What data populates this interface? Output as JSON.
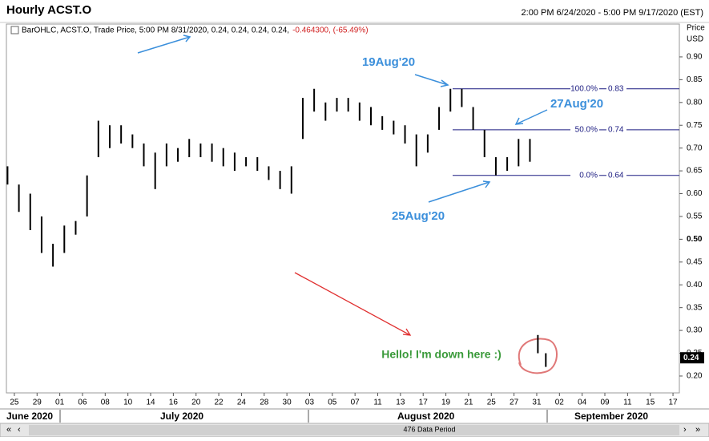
{
  "chart_data": {
    "type": "ohlc",
    "title": "Hourly ACST.O",
    "range_text": "2:00 PM 6/24/2020 - 5:00 PM 9/17/2020 (EST)",
    "legend_text": "BarOHLC, ACST.O, Trade Price, 5:00 PM 8/31/2020, 0.24, 0.24, 0.24, 0.24,",
    "legend_change": "-0.464300, (-65.49%)",
    "axis_label": "Price",
    "axis_unit": "USD",
    "last_price": 0.24,
    "footer_text": "476 Data Period",
    "color": "#000000",
    "ylim": [
      0.163,
      0.972
    ],
    "yticks": [
      {
        "value": 0.2,
        "label": "0.20"
      },
      {
        "value": 0.25,
        "label": "0.25"
      },
      {
        "value": 0.3,
        "label": "0.30"
      },
      {
        "value": 0.35,
        "label": "0.35"
      },
      {
        "value": 0.4,
        "label": "0.40"
      },
      {
        "value": 0.45,
        "label": "0.45"
      },
      {
        "value": 0.5,
        "label": "0.50"
      },
      {
        "value": 0.55,
        "label": "0.55"
      },
      {
        "value": 0.6,
        "label": "0.60"
      },
      {
        "value": 0.65,
        "label": "0.65"
      },
      {
        "value": 0.7,
        "label": "0.70"
      },
      {
        "value": 0.75,
        "label": "0.75"
      },
      {
        "value": 0.8,
        "label": "0.80"
      },
      {
        "value": 0.85,
        "label": "0.85"
      },
      {
        "value": 0.9,
        "label": "0.90"
      }
    ],
    "xlim": [
      -0.35,
      29.28
    ],
    "xticks": [
      {
        "value": 0,
        "label": "25"
      },
      {
        "value": 1,
        "label": "29"
      },
      {
        "value": 2,
        "label": "01"
      },
      {
        "value": 3,
        "label": "06"
      },
      {
        "value": 4,
        "label": "08"
      },
      {
        "value": 5,
        "label": "10"
      },
      {
        "value": 6,
        "label": "14"
      },
      {
        "value": 7,
        "label": "16"
      },
      {
        "value": 8,
        "label": "20"
      },
      {
        "value": 9,
        "label": "22"
      },
      {
        "value": 10,
        "label": "24"
      },
      {
        "value": 11,
        "label": "28"
      },
      {
        "value": 12,
        "label": "30"
      },
      {
        "value": 13,
        "label": "03"
      },
      {
        "value": 14,
        "label": "05"
      },
      {
        "value": 15,
        "label": "07"
      },
      {
        "value": 16,
        "label": "11"
      },
      {
        "value": 17,
        "label": "13"
      },
      {
        "value": 18,
        "label": "17"
      },
      {
        "value": 19,
        "label": "19"
      },
      {
        "value": 20,
        "label": "21"
      },
      {
        "value": 21,
        "label": "25"
      },
      {
        "value": 22,
        "label": "27"
      },
      {
        "value": 23,
        "label": "31"
      },
      {
        "value": 24,
        "label": "02"
      },
      {
        "value": 25,
        "label": "04"
      },
      {
        "value": 26,
        "label": "09"
      },
      {
        "value": 27,
        "label": "11"
      },
      {
        "value": 28,
        "label": "15"
      },
      {
        "value": 29,
        "label": "17"
      }
    ],
    "months": [
      "June 2020",
      "July 2020",
      "August 2020",
      "September 2020"
    ],
    "x": [
      -0.3,
      0.2,
      0.7,
      1.2,
      1.7,
      2.2,
      2.7,
      3.2,
      3.7,
      4.2,
      4.7,
      5.2,
      5.7,
      6.2,
      6.7,
      7.2,
      7.7,
      8.2,
      8.7,
      9.2,
      9.7,
      10.2,
      10.7,
      11.2,
      11.7,
      12.2,
      12.7,
      13.2,
      13.7,
      14.2,
      14.7,
      15.2,
      15.7,
      16.2,
      16.7,
      17.2,
      17.7,
      18.2,
      18.7,
      19.2,
      19.7,
      20.2,
      20.7,
      21.2,
      21.7,
      22.2,
      22.7,
      23.05,
      23.4
    ],
    "high": [
      0.66,
      0.62,
      0.6,
      0.55,
      0.49,
      0.53,
      0.54,
      0.64,
      0.76,
      0.75,
      0.75,
      0.73,
      0.71,
      0.69,
      0.71,
      0.7,
      0.72,
      0.71,
      0.71,
      0.7,
      0.69,
      0.68,
      0.68,
      0.66,
      0.65,
      0.66,
      0.81,
      0.83,
      0.8,
      0.81,
      0.81,
      0.8,
      0.79,
      0.77,
      0.76,
      0.75,
      0.73,
      0.73,
      0.79,
      0.83,
      0.83,
      0.79,
      0.74,
      0.68,
      0.68,
      0.72,
      0.72,
      0.29,
      0.25
    ],
    "low": [
      0.62,
      0.56,
      0.52,
      0.47,
      0.44,
      0.47,
      0.51,
      0.55,
      0.68,
      0.7,
      0.71,
      0.7,
      0.66,
      0.61,
      0.66,
      0.67,
      0.68,
      0.68,
      0.67,
      0.66,
      0.65,
      0.66,
      0.65,
      0.63,
      0.61,
      0.6,
      0.72,
      0.78,
      0.76,
      0.78,
      0.78,
      0.76,
      0.75,
      0.74,
      0.73,
      0.71,
      0.66,
      0.69,
      0.74,
      0.78,
      0.79,
      0.74,
      0.68,
      0.64,
      0.65,
      0.66,
      0.67,
      0.25,
      0.22
    ],
    "fib_levels": [
      {
        "label": "100.0%",
        "value": 0.83
      },
      {
        "label": "50.0%",
        "value": 0.74
      },
      {
        "label": "0.0%",
        "value": 0.64
      }
    ],
    "annotations": [
      "19Aug'20",
      "27Aug'20",
      "25Aug'20",
      "Hello!  I'm down here :)"
    ]
  }
}
